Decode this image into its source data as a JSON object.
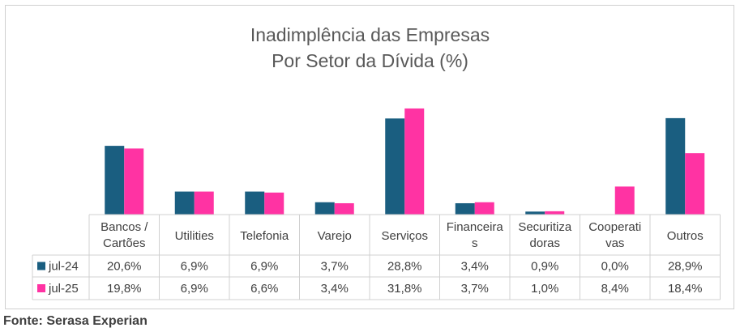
{
  "chart_data": {
    "type": "bar",
    "title": "Inadimplência das Empresas",
    "subtitle": "Por Setor da Dívida (%)",
    "categories": [
      [
        "Bancos /",
        "Cartões"
      ],
      [
        "Utilities"
      ],
      [
        "Telefonia"
      ],
      [
        "Varejo"
      ],
      [
        "Serviços"
      ],
      [
        "Financeira",
        "s"
      ],
      [
        "Securitiza",
        "doras"
      ],
      [
        "Cooperati",
        "vas"
      ],
      [
        "Outros"
      ]
    ],
    "series": [
      {
        "name": "jul-24",
        "color": "#1a5e80",
        "values": [
          20.6,
          6.9,
          6.9,
          3.7,
          28.8,
          3.4,
          0.9,
          0.0,
          28.9
        ],
        "labels": [
          "20,6%",
          "6,9%",
          "6,9%",
          "3,7%",
          "28,8%",
          "3,4%",
          "0,9%",
          "0,0%",
          "28,9%"
        ]
      },
      {
        "name": "jul-25",
        "color": "#ff33a3",
        "values": [
          19.8,
          6.9,
          6.6,
          3.4,
          31.8,
          3.7,
          1.0,
          8.4,
          18.4
        ],
        "labels": [
          "19,8%",
          "6,9%",
          "6,6%",
          "3,4%",
          "31,8%",
          "3,7%",
          "1,0%",
          "8,4%",
          "18,4%"
        ]
      }
    ],
    "ylim": [
      0,
      33
    ],
    "grid": false,
    "legend": "data-table"
  },
  "source": "Fonte: Serasa Experian"
}
